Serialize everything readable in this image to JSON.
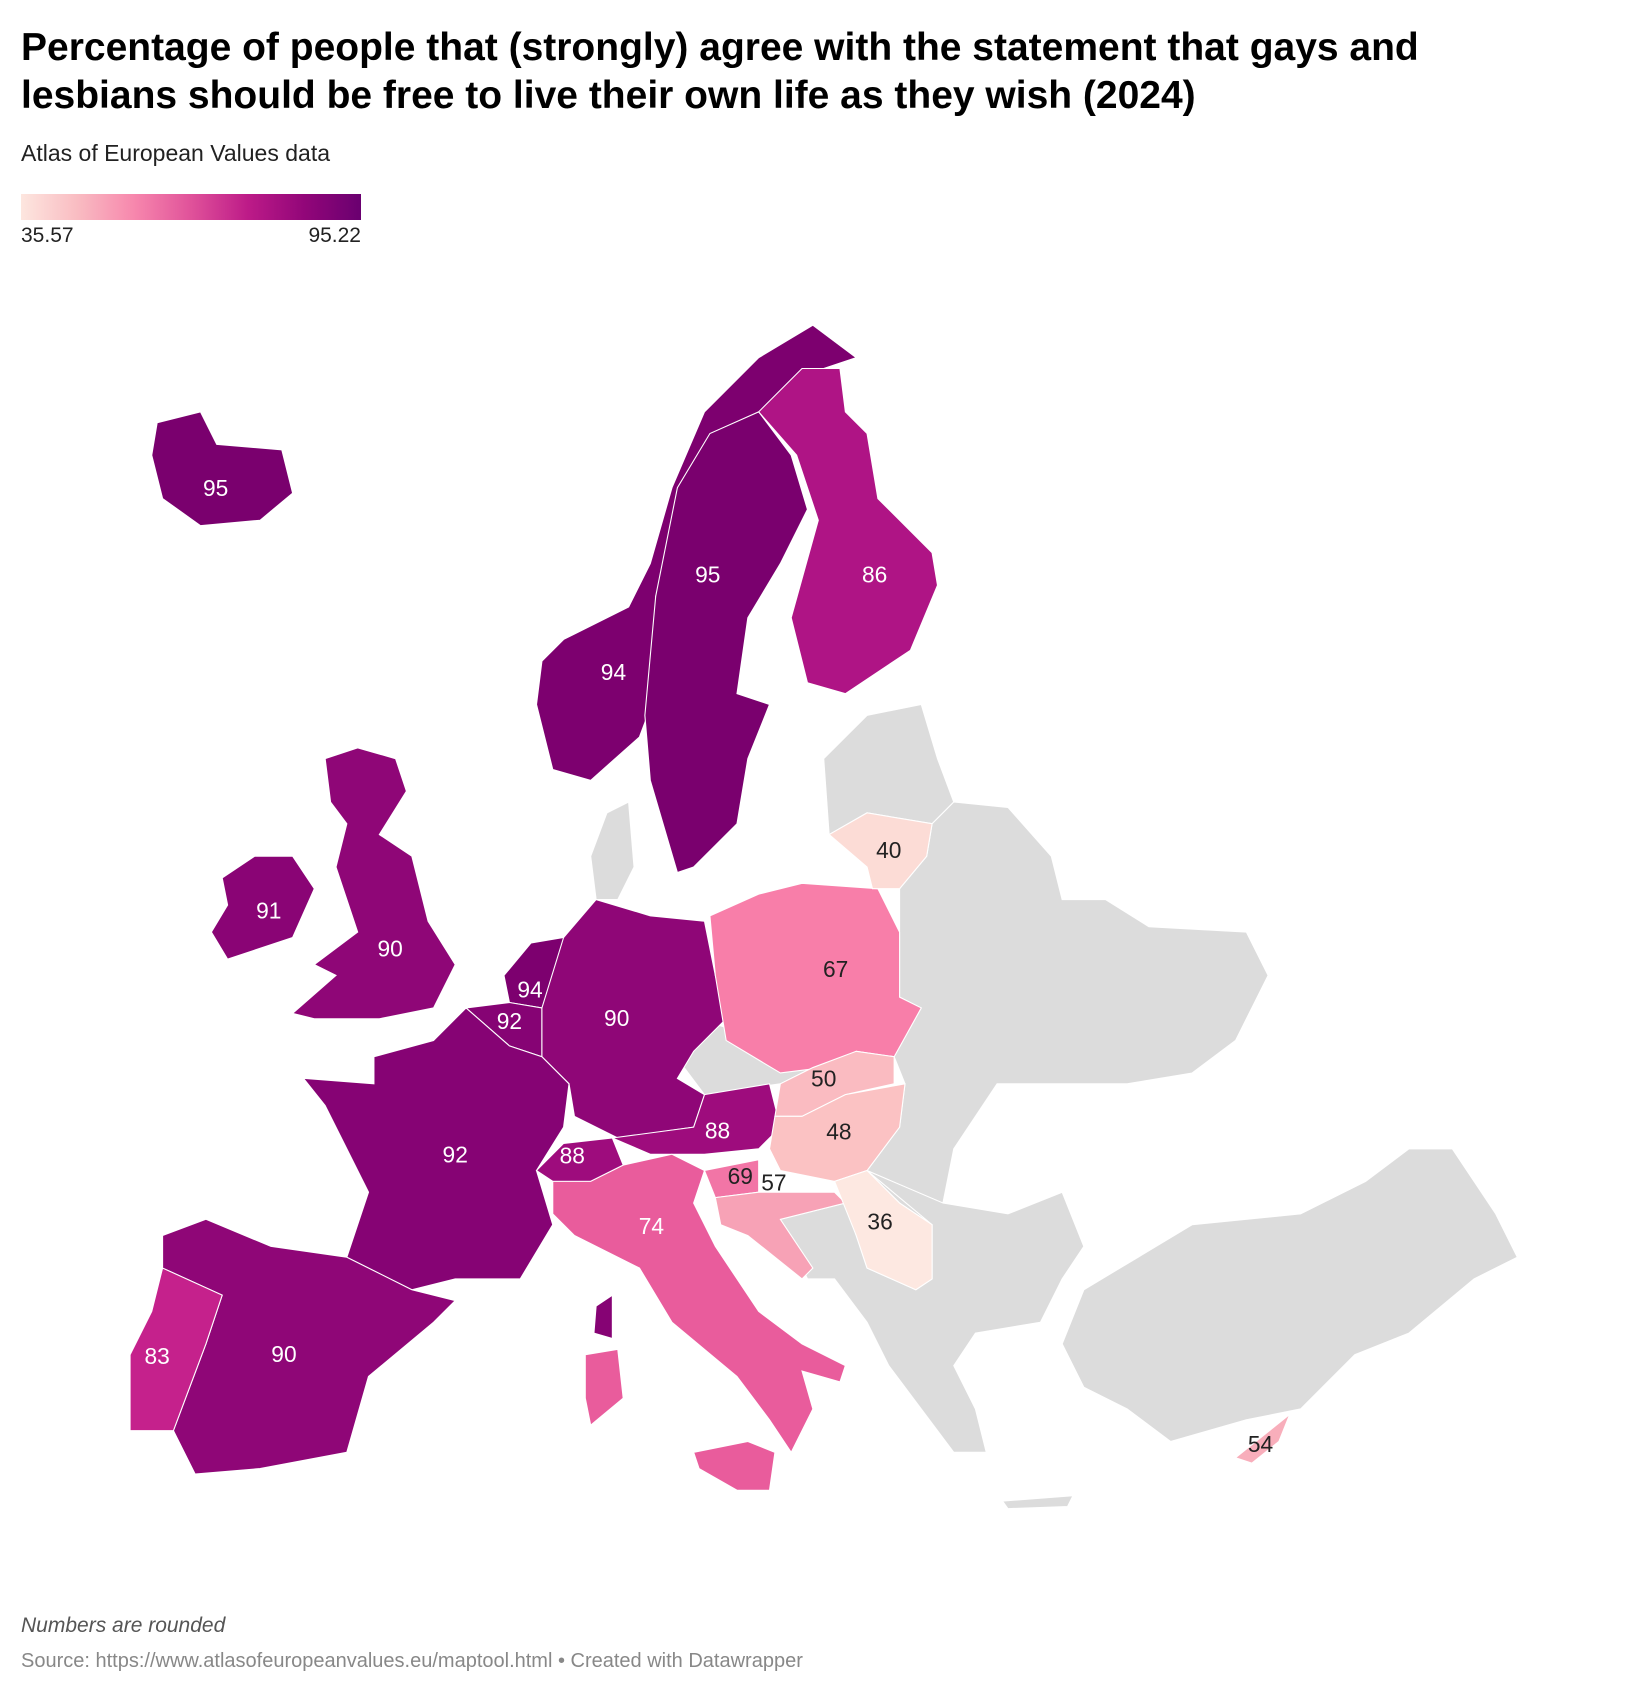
{
  "title": "Percentage of people that (strongly) agree with the statement that gays and lesbians should be free to live their own life as they wish (2024)",
  "subtitle": "Atlas of European Values data",
  "legend": {
    "min": "35.57",
    "max": "95.22"
  },
  "notes": "Numbers are rounded",
  "source": "Source: https://www.atlasofeuropeanvalues.eu/maptool.html • Created with Datawrapper",
  "colors": {
    "no_data": "#dcdcdc",
    "min": "#fde6df",
    "max": "#6a0070"
  },
  "countries": [
    {
      "name": "Iceland",
      "label": "95",
      "color": "#7a006e"
    },
    {
      "name": "Norway",
      "label": "94",
      "color": "#7d006f"
    },
    {
      "name": "Sweden",
      "label": "95",
      "color": "#7a006e"
    },
    {
      "name": "Finland",
      "label": "86",
      "color": "#af1485"
    },
    {
      "name": "Ireland",
      "label": "91",
      "color": "#8a0475"
    },
    {
      "name": "United Kingdom",
      "label": "90",
      "color": "#8f0677"
    },
    {
      "name": "Netherlands",
      "label": "94",
      "color": "#7d006f"
    },
    {
      "name": "Belgium",
      "label": "92",
      "color": "#860374"
    },
    {
      "name": "Germany",
      "label": "90",
      "color": "#8f0677"
    },
    {
      "name": "France",
      "label": "92",
      "color": "#860374"
    },
    {
      "name": "Spain",
      "label": "90",
      "color": "#8f0677"
    },
    {
      "name": "Portugal",
      "label": "83",
      "color": "#c5218c"
    },
    {
      "name": "Switzerland",
      "label": "88",
      "color": "#9e0c7d"
    },
    {
      "name": "Austria",
      "label": "88",
      "color": "#9e0c7d"
    },
    {
      "name": "Italy",
      "label": "74",
      "color": "#e95c9c"
    },
    {
      "name": "Slovenia",
      "label": "69",
      "color": "#f275a6"
    },
    {
      "name": "Croatia",
      "label": "57",
      "color": "#f7a2b6"
    },
    {
      "name": "Poland",
      "label": "67",
      "color": "#f87ea9"
    },
    {
      "name": "Slovakia",
      "label": "50",
      "color": "#fabbc1"
    },
    {
      "name": "Hungary",
      "label": "48",
      "color": "#fbc2c3"
    },
    {
      "name": "Serbia",
      "label": "36",
      "color": "#fde8e1"
    },
    {
      "name": "Lithuania",
      "label": "40",
      "color": "#fcdcd6"
    },
    {
      "name": "Cyprus",
      "label": "54",
      "color": "#f8aebb"
    }
  ]
}
